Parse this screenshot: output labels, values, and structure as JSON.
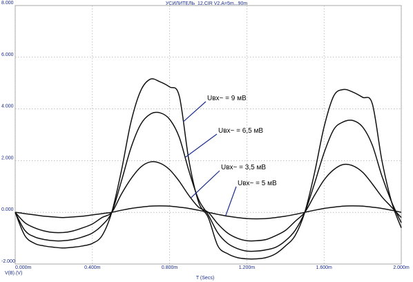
{
  "chart_data": {
    "type": "line",
    "title": "УСИЛИТЕЛЬ_12.CIR V2.A=5m...90m",
    "xlabel": "T (Secs)",
    "ylabel": "V(B).(V)",
    "xlim": [
      0,
      2.0
    ],
    "ylim": [
      -2.0,
      8.0
    ],
    "x_ticks": [
      0,
      0.4,
      0.8,
      1.2,
      1.6,
      2.0
    ],
    "x_tick_labels": [
      "0.000m",
      "0.400m",
      "0.800m",
      "1.200m",
      "1.600m",
      "2.000m"
    ],
    "y_ticks": [
      -2,
      0,
      2,
      4,
      6,
      8
    ],
    "y_tick_labels": [
      "-2.000",
      "0.000",
      "2.000",
      "4.000",
      "6.000",
      "8.000"
    ],
    "grid": true,
    "series": [
      {
        "name": "Uвх~ = 9 мВ",
        "x": [
          0,
          0.05,
          0.1,
          0.15,
          0.2,
          0.25,
          0.3,
          0.35,
          0.4,
          0.45,
          0.5,
          0.55,
          0.6,
          0.65,
          0.7,
          0.75,
          0.8,
          0.85,
          0.9,
          0.95,
          1.0,
          1.05,
          1.1,
          1.15,
          1.2,
          1.25,
          1.3,
          1.35,
          1.4,
          1.45,
          1.5,
          1.55,
          1.6,
          1.65,
          1.7,
          1.75,
          1.8,
          1.85,
          1.9,
          1.95,
          2.0
        ],
        "y": [
          0,
          -0.9,
          -1.2,
          -1.3,
          -1.35,
          -1.38,
          -1.35,
          -1.3,
          -1.2,
          -0.9,
          0,
          1.6,
          3.5,
          4.7,
          5.15,
          5.05,
          4.85,
          4.5,
          2.0,
          0.4,
          -0.2,
          -1.3,
          -1.6,
          -1.75,
          -1.8,
          -1.8,
          -1.75,
          -1.6,
          -1.3,
          -0.9,
          0,
          1.5,
          3.3,
          4.5,
          4.75,
          4.65,
          4.45,
          4.2,
          2.0,
          0.4,
          -0.6
        ]
      },
      {
        "name": "Uвх~ = 6,5 мВ",
        "x": [
          0,
          0.05,
          0.1,
          0.15,
          0.2,
          0.25,
          0.3,
          0.35,
          0.4,
          0.45,
          0.5,
          0.55,
          0.6,
          0.65,
          0.7,
          0.75,
          0.8,
          0.85,
          0.9,
          0.95,
          1.0,
          1.05,
          1.1,
          1.15,
          1.2,
          1.25,
          1.3,
          1.35,
          1.4,
          1.45,
          1.5,
          1.55,
          1.6,
          1.65,
          1.7,
          1.75,
          1.8,
          1.85,
          1.9,
          1.95,
          2.0
        ],
        "y": [
          0,
          -0.7,
          -0.95,
          -1.05,
          -1.1,
          -1.1,
          -1.05,
          -0.95,
          -0.8,
          -0.5,
          0,
          1.2,
          2.5,
          3.4,
          3.8,
          3.85,
          3.6,
          2.9,
          1.6,
          0.5,
          -0.1,
          -0.8,
          -1.2,
          -1.4,
          -1.5,
          -1.5,
          -1.45,
          -1.35,
          -1.1,
          -0.7,
          0,
          1.1,
          2.3,
          3.2,
          3.5,
          3.55,
          3.3,
          2.6,
          1.4,
          0.4,
          -0.4
        ]
      },
      {
        "name": "Uвх~ = 3,5 мВ",
        "x": [
          0,
          0.05,
          0.1,
          0.15,
          0.2,
          0.25,
          0.3,
          0.35,
          0.4,
          0.45,
          0.5,
          0.55,
          0.6,
          0.65,
          0.7,
          0.75,
          0.8,
          0.85,
          0.9,
          0.95,
          1.0,
          1.05,
          1.1,
          1.15,
          1.2,
          1.25,
          1.3,
          1.35,
          1.4,
          1.45,
          1.5,
          1.55,
          1.6,
          1.65,
          1.7,
          1.75,
          1.8,
          1.85,
          1.9,
          1.95,
          2.0
        ],
        "y": [
          0,
          -0.4,
          -0.6,
          -0.72,
          -0.78,
          -0.78,
          -0.72,
          -0.6,
          -0.45,
          -0.2,
          0,
          0.7,
          1.3,
          1.75,
          1.95,
          1.9,
          1.65,
          1.2,
          0.65,
          0.2,
          0,
          -0.45,
          -0.8,
          -1.0,
          -1.1,
          -1.1,
          -1.05,
          -0.9,
          -0.7,
          -0.35,
          0,
          0.65,
          1.25,
          1.65,
          1.85,
          1.8,
          1.55,
          1.1,
          0.6,
          0.2,
          -0.2
        ]
      },
      {
        "name": "Uвх~ = 5 мВ",
        "x": [
          0,
          0.05,
          0.1,
          0.15,
          0.2,
          0.25,
          0.3,
          0.35,
          0.4,
          0.45,
          0.5,
          0.55,
          0.6,
          0.65,
          0.7,
          0.75,
          0.8,
          0.85,
          0.9,
          0.95,
          1.0,
          1.05,
          1.1,
          1.15,
          1.2,
          1.25,
          1.3,
          1.35,
          1.4,
          1.45,
          1.5,
          1.55,
          1.6,
          1.65,
          1.7,
          1.75,
          1.8,
          1.85,
          1.9,
          1.95,
          2.0
        ],
        "y": [
          0,
          -0.05,
          -0.1,
          -0.15,
          -0.18,
          -0.2,
          -0.18,
          -0.15,
          -0.1,
          -0.05,
          0,
          0.08,
          0.15,
          0.2,
          0.24,
          0.25,
          0.24,
          0.2,
          0.15,
          0.08,
          0,
          -0.08,
          -0.15,
          -0.2,
          -0.24,
          -0.25,
          -0.24,
          -0.2,
          -0.15,
          -0.08,
          0,
          0.08,
          0.15,
          0.2,
          0.24,
          0.25,
          0.24,
          0.2,
          0.15,
          0.08,
          0
        ]
      }
    ],
    "annotations": [
      {
        "text": "Uвх~ = 9 мВ",
        "series": 0,
        "x": 0.87
      },
      {
        "text": "Uвх~ = 6,5 мВ",
        "series": 1,
        "x": 0.88
      },
      {
        "text": "Uвх~ = 3,5 мВ",
        "series": 2,
        "x": 0.91
      },
      {
        "text": "Uвх~ = 5 мВ",
        "series": 3,
        "x": 1.09
      }
    ]
  }
}
